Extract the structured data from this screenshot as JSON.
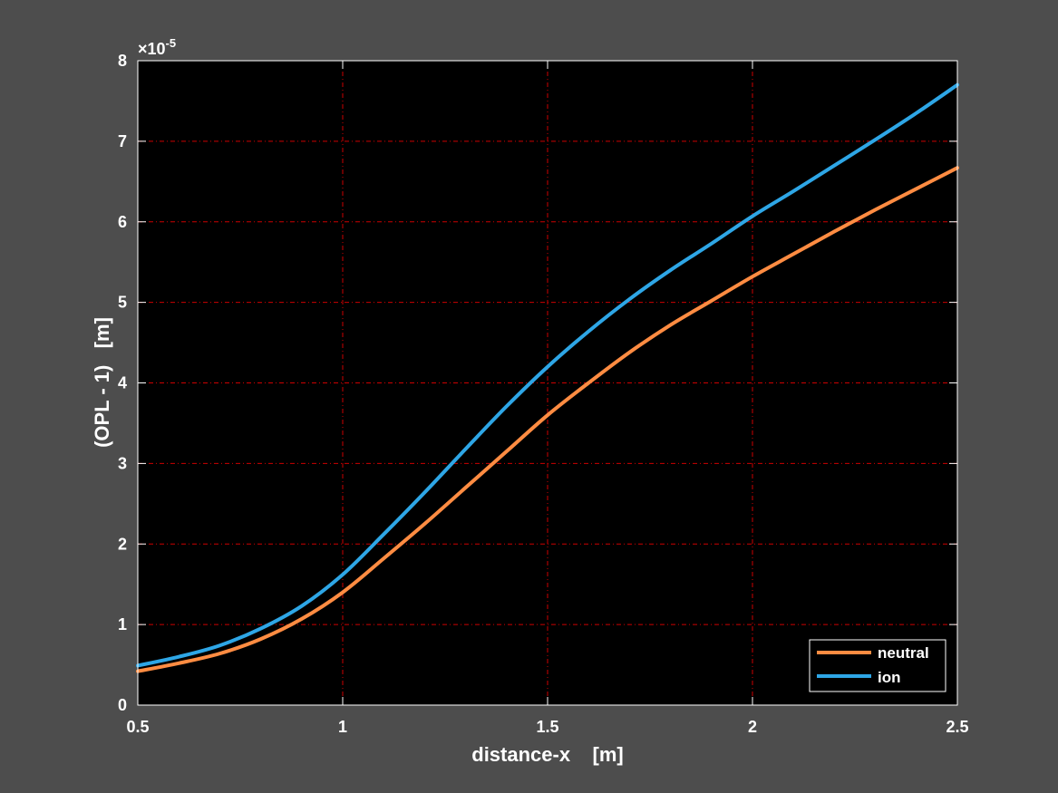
{
  "chart_data": {
    "type": "line",
    "title": "",
    "xlabel": "distance-x    [m]",
    "ylabel": "(OPL - 1)   [m]",
    "xlim": [
      0.5,
      2.5
    ],
    "ylim": [
      0,
      8e-05
    ],
    "y_exponent_label": "×10",
    "y_exponent_power": "-5",
    "x_ticks": [
      "0.5",
      "1",
      "1.5",
      "2",
      "2.5"
    ],
    "y_ticks": [
      "0",
      "1",
      "2",
      "3",
      "4",
      "5",
      "6",
      "7",
      "8"
    ],
    "grid": true,
    "legend_position": "bottom-right",
    "background": "#000000",
    "grid_color": "#cc0000",
    "x": [
      0.5,
      0.6,
      0.7,
      0.8,
      0.9,
      1.0,
      1.1,
      1.2,
      1.3,
      1.4,
      1.5,
      1.6,
      1.7,
      1.8,
      1.9,
      2.0,
      2.1,
      2.2,
      2.3,
      2.4,
      2.5
    ],
    "series": [
      {
        "name": "neutral",
        "color": "#ff8c42",
        "values": [
          4.2e-06,
          5.2e-06,
          6.4e-06,
          8.2e-06,
          1.07e-05,
          1.4e-05,
          1.82e-05,
          2.25e-05,
          2.7e-05,
          3.15e-05,
          3.6e-05,
          4e-05,
          4.38e-05,
          4.72e-05,
          5.02e-05,
          5.32e-05,
          5.6e-05,
          5.88e-05,
          6.15e-05,
          6.41e-05,
          6.67e-05
        ]
      },
      {
        "name": "ion",
        "color": "#2ea6e6",
        "values": [
          4.9e-06,
          6e-06,
          7.4e-06,
          9.5e-06,
          1.23e-05,
          1.62e-05,
          2.12e-05,
          2.64e-05,
          3.18e-05,
          3.71e-05,
          4.2e-05,
          4.64e-05,
          5.04e-05,
          5.4e-05,
          5.73e-05,
          6.07e-05,
          6.38e-05,
          6.7e-05,
          7.02e-05,
          7.35e-05,
          7.7e-05
        ]
      }
    ]
  }
}
